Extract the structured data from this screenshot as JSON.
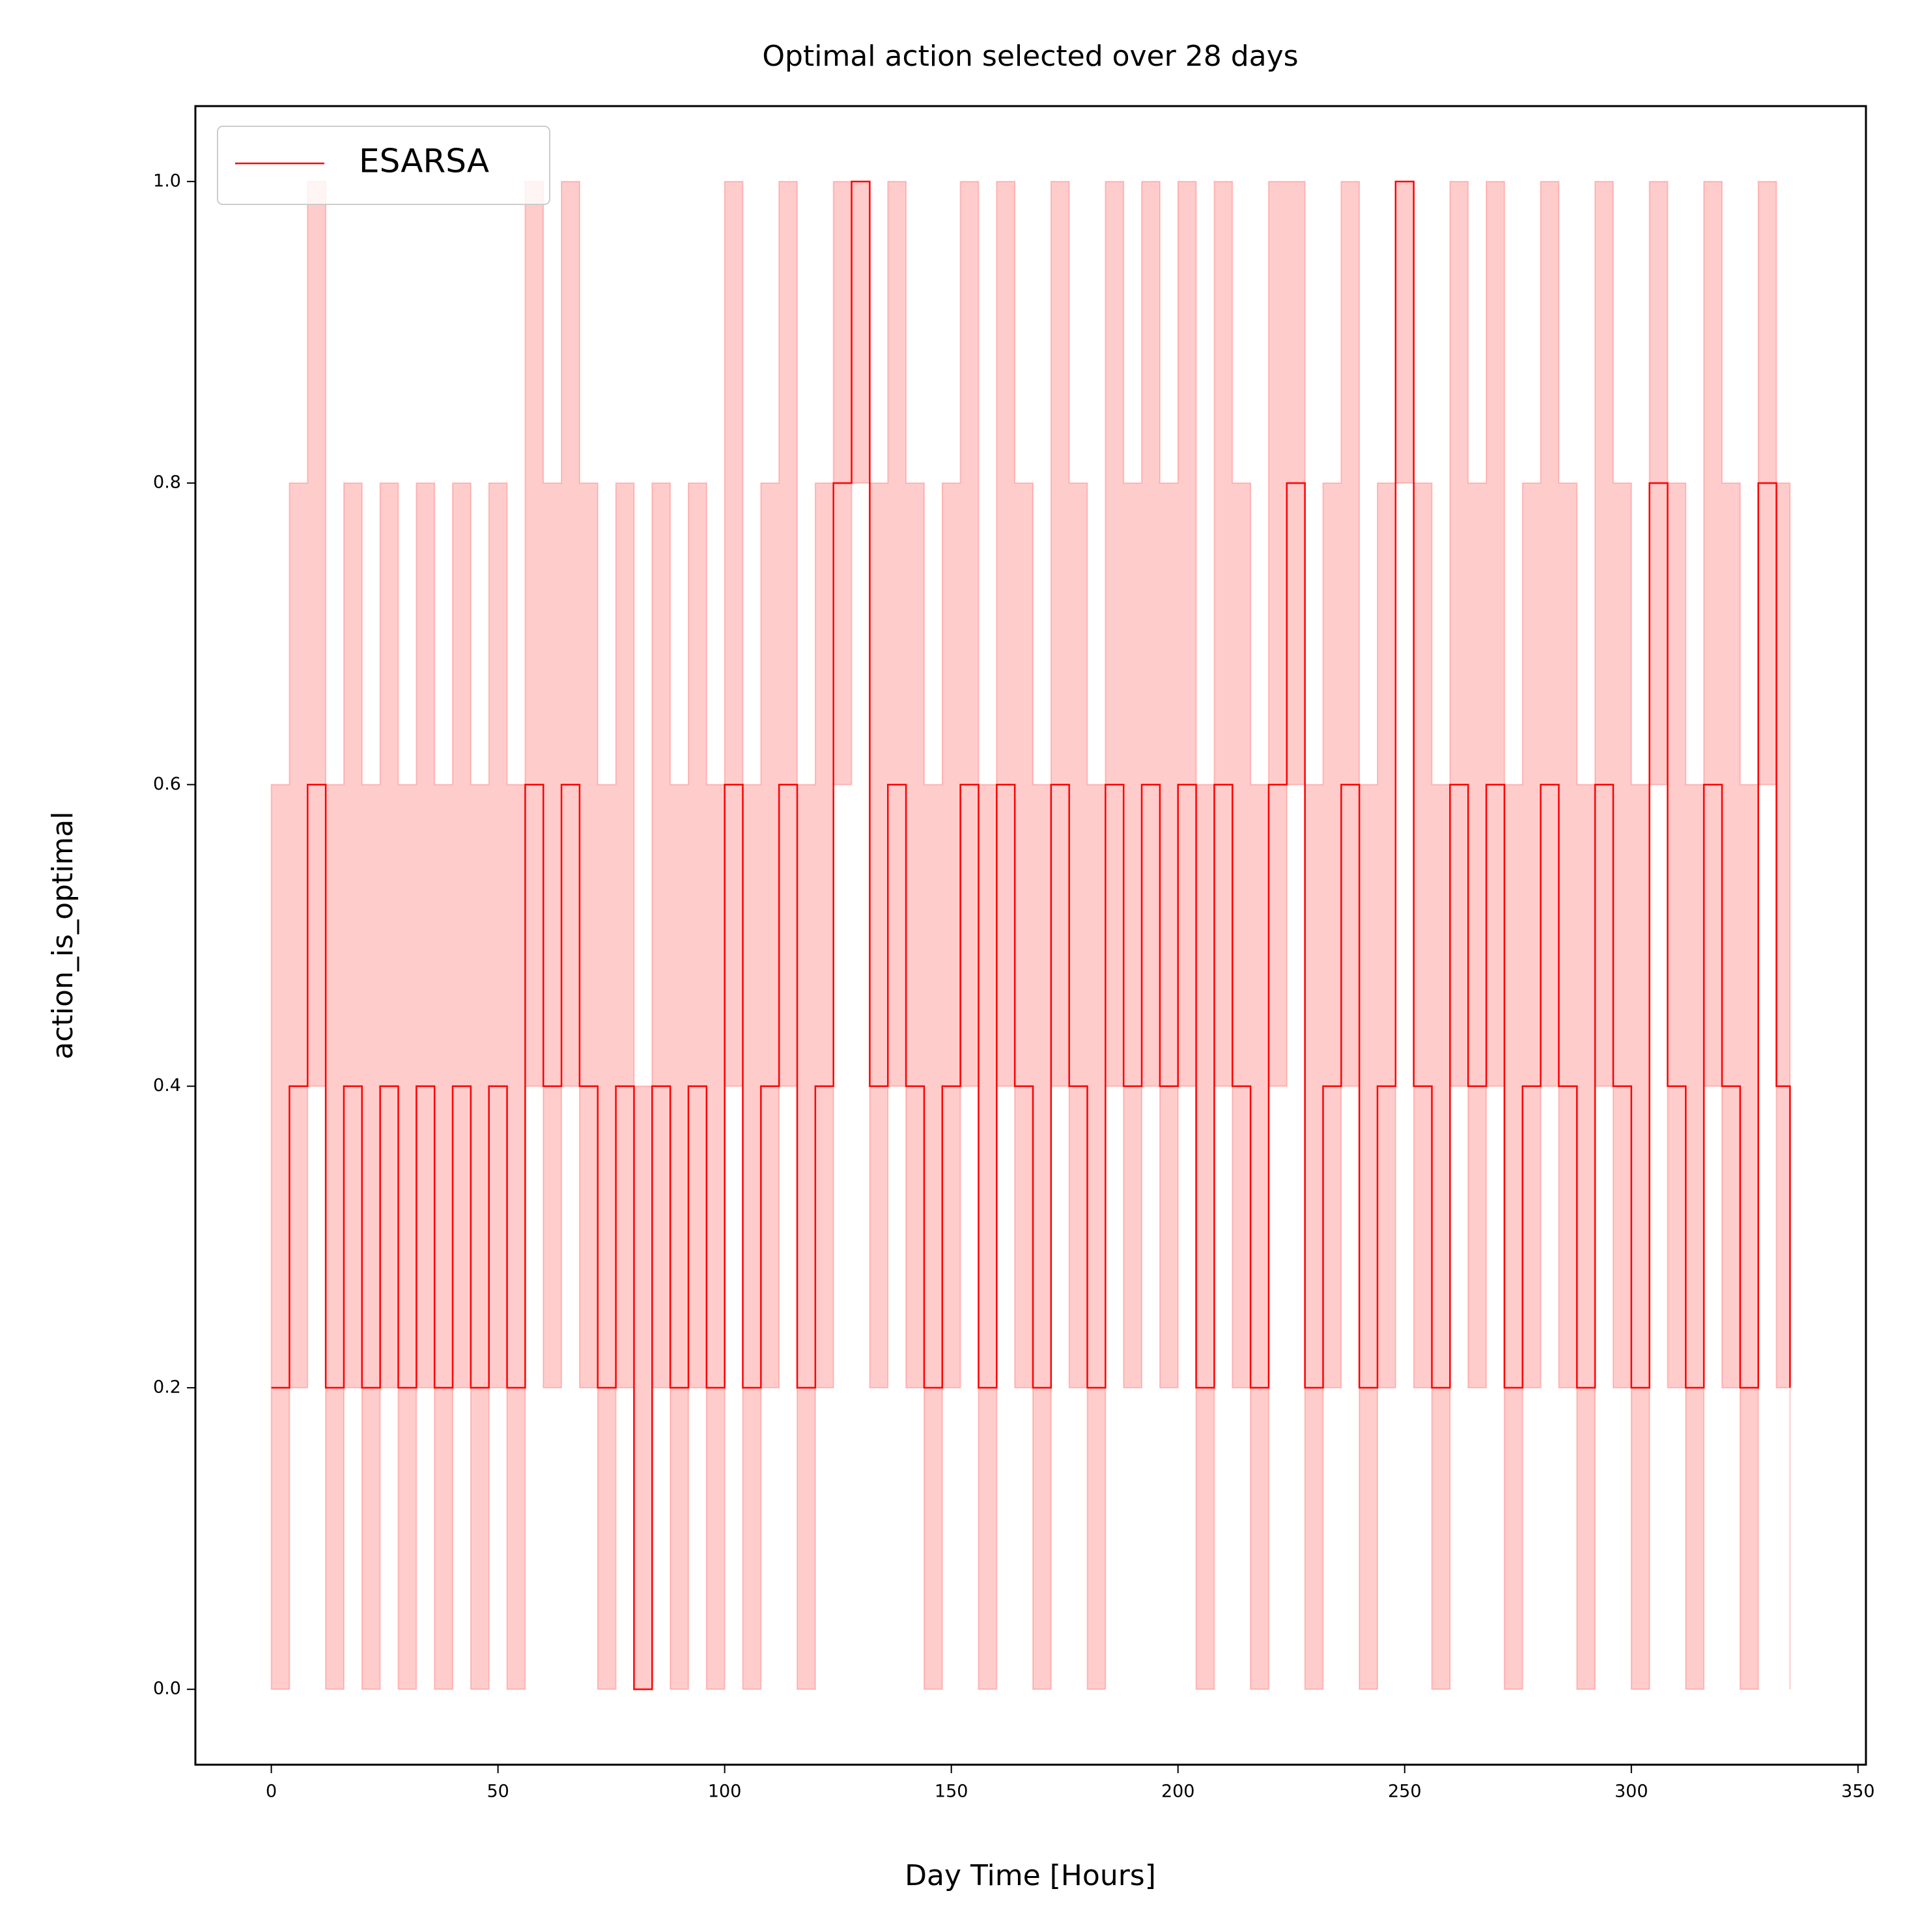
{
  "chart_data": {
    "type": "line",
    "title": "Optimal action selected over 28 days",
    "xlabel": "Day Time [Hours]",
    "ylabel": "action_is_optimal",
    "drawstyle": "steps-post",
    "legend": "upper left",
    "band_opacity": 0.2,
    "xlim": [
      -16.75,
      351.75
    ],
    "ylim": [
      -0.05,
      1.05
    ],
    "xticks": [
      0,
      50,
      100,
      150,
      200,
      250,
      300,
      350
    ],
    "yticks": [
      {
        "value": 0,
        "label": "0.0"
      },
      0.2,
      0.4,
      0.6,
      0.8,
      {
        "value": 1,
        "label": "1.0"
      }
    ],
    "x": [
      0,
      4,
      8,
      12,
      16,
      20,
      24,
      28,
      32,
      36,
      40,
      44,
      48,
      52,
      56,
      60,
      64,
      68,
      72,
      76,
      80,
      84,
      88,
      92,
      96,
      100,
      104,
      108,
      112,
      116,
      120,
      124,
      128,
      132,
      136,
      140,
      144,
      148,
      152,
      156,
      160,
      164,
      168,
      172,
      176,
      180,
      184,
      188,
      192,
      196,
      200,
      204,
      208,
      212,
      216,
      220,
      224,
      228,
      232,
      236,
      240,
      244,
      248,
      252,
      256,
      260,
      264,
      268,
      272,
      276,
      280,
      284,
      288,
      292,
      296,
      300,
      304,
      308,
      312,
      316,
      320,
      324,
      328,
      332,
      335
    ],
    "series": [
      {
        "name": "ESARSA",
        "color": "#ff0000",
        "values": [
          0.2,
          0.4,
          0.6,
          0.2,
          0.4,
          0.2,
          0.4,
          0.2,
          0.4,
          0.2,
          0.4,
          0.2,
          0.4,
          0.2,
          0.6,
          0.4,
          0.6,
          0.4,
          0.2,
          0.4,
          0.0,
          0.4,
          0.2,
          0.4,
          0.2,
          0.6,
          0.2,
          0.4,
          0.6,
          0.2,
          0.4,
          0.8,
          1.0,
          0.4,
          0.6,
          0.4,
          0.2,
          0.4,
          0.6,
          0.2,
          0.6,
          0.4,
          0.2,
          0.6,
          0.4,
          0.2,
          0.6,
          0.4,
          0.6,
          0.4,
          0.6,
          0.2,
          0.6,
          0.4,
          0.2,
          0.6,
          0.8,
          0.2,
          0.4,
          0.6,
          0.2,
          0.4,
          1.0,
          0.4,
          0.2,
          0.6,
          0.4,
          0.6,
          0.2,
          0.4,
          0.6,
          0.4,
          0.2,
          0.6,
          0.4,
          0.2,
          0.8,
          0.4,
          0.2,
          0.6,
          0.4,
          0.2,
          0.8,
          0.4,
          0.2
        ],
        "lower": [
          0,
          0.2,
          0.4,
          0,
          0.2,
          0,
          0.2,
          0,
          0.2,
          0,
          0.2,
          0,
          0.2,
          0,
          0.4,
          0.2,
          0.4,
          0.2,
          0,
          0.2,
          0,
          0.2,
          0,
          0.2,
          0,
          0.4,
          0,
          0.2,
          0.4,
          0,
          0.2,
          0.6,
          0.8,
          0.2,
          0.4,
          0.2,
          0,
          0.2,
          0.4,
          0,
          0.4,
          0.2,
          0,
          0.4,
          0.2,
          0,
          0.4,
          0.2,
          0.4,
          0.2,
          0.4,
          0,
          0.4,
          0.2,
          0,
          0.4,
          0.6,
          0,
          0.2,
          0.4,
          0,
          0.2,
          0.8,
          0.2,
          0,
          0.4,
          0.2,
          0.4,
          0,
          0.2,
          0.4,
          0.2,
          0,
          0.4,
          0.2,
          0,
          0.6,
          0.2,
          0,
          0.4,
          0.2,
          0,
          0.6,
          0.2,
          0
        ],
        "upper": [
          0.6,
          0.8,
          1.0,
          0.6,
          0.8,
          0.6,
          0.8,
          0.6,
          0.8,
          0.6,
          0.8,
          0.6,
          0.8,
          0.6,
          1.0,
          0.8,
          1.0,
          0.8,
          0.6,
          0.8,
          0.4,
          0.8,
          0.6,
          0.8,
          0.6,
          1.0,
          0.6,
          0.8,
          1.0,
          0.6,
          0.8,
          1.0,
          1.0,
          0.8,
          1.0,
          0.8,
          0.6,
          0.8,
          1.0,
          0.6,
          1.0,
          0.8,
          0.6,
          1.0,
          0.8,
          0.6,
          1.0,
          0.8,
          1.0,
          0.8,
          1.0,
          0.6,
          1.0,
          0.8,
          0.6,
          1.0,
          1.0,
          0.6,
          0.8,
          1.0,
          0.6,
          0.8,
          1.0,
          0.8,
          0.6,
          1.0,
          0.8,
          1.0,
          0.6,
          0.8,
          1.0,
          0.8,
          0.6,
          1.0,
          0.8,
          0.6,
          1.0,
          0.8,
          0.6,
          1.0,
          0.8,
          0.6,
          1.0,
          0.8,
          0.6
        ]
      }
    ]
  }
}
